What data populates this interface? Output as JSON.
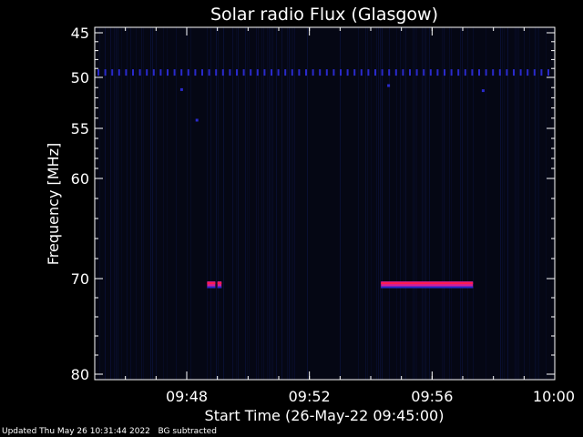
{
  "chart_data": {
    "type": "heatmap",
    "title": "Solar radio Flux (Glasgow)",
    "ylabel": "Frequency [MHz]",
    "xlabel": "Start Time (26-May-22 09:45:00)",
    "x_range": [
      "09:45",
      "10:00"
    ],
    "y_range": [
      45,
      80
    ],
    "y_ticks": [
      "45",
      "50",
      "55",
      "60",
      "70",
      "80"
    ],
    "x_ticks": [
      "09:48",
      "09:52",
      "09:56",
      "10:00"
    ],
    "grid": false,
    "colors": {
      "background": "#000000",
      "plot_background": "#050714",
      "noise": "#0c1440",
      "band": "#2a2acc",
      "burst_edge": "#ff1a4d",
      "burst_core": "#d0209a"
    },
    "interference_line_mhz": 49.5,
    "dots": [
      {
        "time": "09:47:50",
        "freq": 51.2
      },
      {
        "time": "09:54:35",
        "freq": 50.8
      },
      {
        "time": "09:57:40",
        "freq": 51.3
      },
      {
        "time": "09:48:20",
        "freq": 54.2
      }
    ],
    "bursts": [
      {
        "start": "09:48:40",
        "end": "09:48:56",
        "freq_lo": 70.3,
        "freq_hi": 71.0
      },
      {
        "start": "09:49:00",
        "end": "09:49:08",
        "freq_lo": 70.3,
        "freq_hi": 71.0
      },
      {
        "start": "09:54:20",
        "end": "09:57:20",
        "freq_lo": 70.3,
        "freq_hi": 71.0
      }
    ]
  },
  "footer": {
    "updated": "Updated Thu May 26 10:31:44 2022",
    "note": "BG subtracted"
  }
}
